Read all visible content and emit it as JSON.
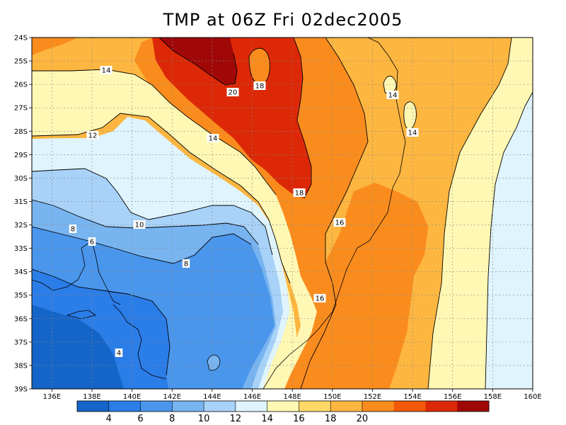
{
  "title": "TMP at 06Z Fri 02dec2005",
  "map": {
    "region": "Eastern Australia and Tasman Sea",
    "variable": "TMP",
    "lon_range": [
      135,
      160
    ],
    "lat_range": [
      -39,
      -24
    ],
    "grid": "dashed",
    "x_ticks": [
      "136E",
      "138E",
      "140E",
      "142E",
      "144E",
      "146E",
      "148E",
      "150E",
      "152E",
      "154E",
      "156E",
      "158E",
      "160E"
    ],
    "y_ticks": [
      "24S",
      "25S",
      "26S",
      "27S",
      "28S",
      "29S",
      "30S",
      "31S",
      "32S",
      "33S",
      "34S",
      "35S",
      "36S",
      "37S",
      "38S",
      "39S"
    ],
    "contour_labels": [
      "14",
      "20",
      "18",
      "14",
      "14",
      "12",
      "14",
      "18",
      "10",
      "16",
      "8",
      "6",
      "8",
      "16",
      "4"
    ]
  },
  "colorbar": {
    "levels": [
      "4",
      "6",
      "8",
      "10",
      "12",
      "14",
      "16",
      "18",
      "20"
    ],
    "colors": [
      "#1565c8",
      "#2b7de8",
      "#4a96ec",
      "#78b4f0",
      "#a8d2f8",
      "#dff4fc",
      "#fff8b4",
      "#ffd868",
      "#fdb640",
      "#fa8c1e",
      "#f25a08",
      "#dc2806",
      "#a00808"
    ]
  }
}
